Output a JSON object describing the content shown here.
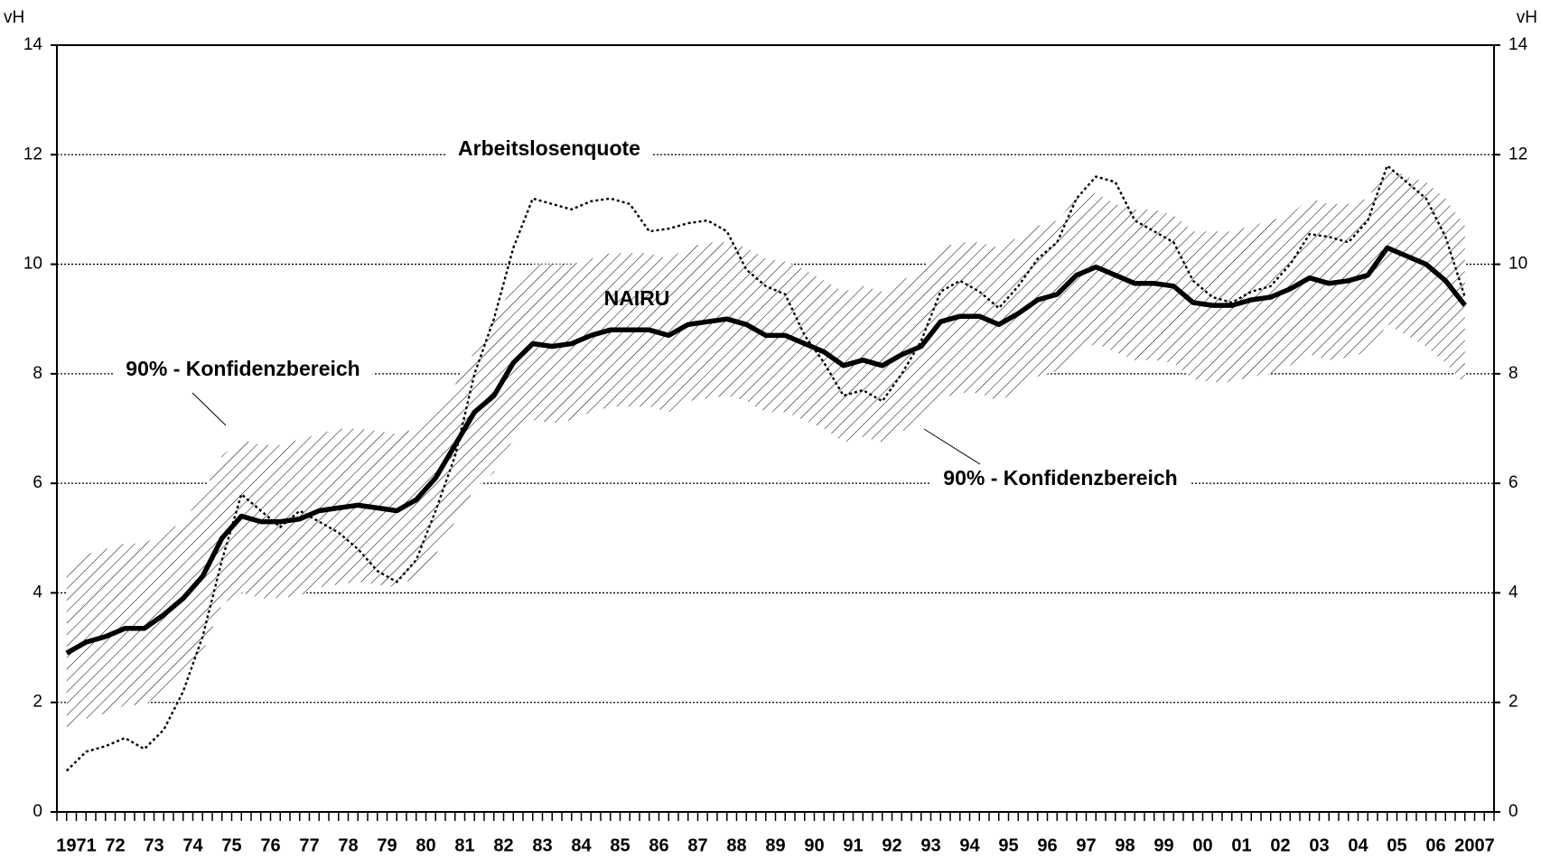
{
  "chart_data": {
    "type": "line",
    "y_label": "vH",
    "y2_label": "vH",
    "ylim": [
      0,
      14
    ],
    "yticks": [
      0,
      2,
      4,
      6,
      8,
      10,
      12,
      14
    ],
    "y2lim": [
      0,
      14
    ],
    "y2ticks": [
      0,
      2,
      4,
      6,
      8,
      10,
      12,
      14
    ],
    "grid": true,
    "categories": [
      "1971",
      null,
      "72",
      null,
      "73",
      null,
      "74",
      null,
      "75",
      null,
      "76",
      null,
      "77",
      null,
      "78",
      null,
      "79",
      null,
      "80",
      null,
      "81",
      null,
      "82",
      null,
      "83",
      null,
      "84",
      null,
      "85",
      null,
      "86",
      null,
      "87",
      null,
      "88",
      null,
      "89",
      null,
      "90",
      null,
      "91",
      null,
      "92",
      null,
      "93",
      null,
      "94",
      null,
      "95",
      null,
      "96",
      null,
      "97",
      null,
      "98",
      null,
      "99",
      null,
      "00",
      null,
      "01",
      null,
      "02",
      null,
      "03",
      null,
      "04",
      null,
      "05",
      null,
      "06",
      null,
      "2007",
      null
    ],
    "band": {
      "label": "90% - Konfidenzbereich",
      "upper": [
        4.4,
        4.7,
        4.8,
        4.9,
        4.9,
        5.1,
        5.3,
        5.8,
        6.5,
        6.8,
        6.7,
        6.7,
        6.8,
        6.9,
        7.0,
        7.0,
        6.95,
        6.9,
        7.0,
        7.3,
        7.8,
        8.4,
        9.0,
        9.6,
        10.0,
        10.0,
        10.0,
        10.1,
        10.2,
        10.2,
        10.2,
        10.1,
        10.3,
        10.4,
        10.4,
        10.3,
        10.1,
        10.05,
        9.9,
        9.7,
        9.5,
        9.6,
        9.5,
        9.7,
        9.9,
        10.3,
        10.4,
        10.4,
        10.3,
        10.5,
        10.7,
        10.8,
        11.2,
        11.3,
        11.1,
        11.0,
        11.0,
        10.9,
        10.6,
        10.6,
        10.6,
        10.7,
        10.8,
        10.9,
        11.2,
        11.1,
        11.1,
        11.2,
        11.8,
        11.6,
        11.5,
        11.2,
        10.7,
        null
      ],
      "lower": [
        1.5,
        1.7,
        1.8,
        1.95,
        1.95,
        2.2,
        2.5,
        2.9,
        3.8,
        4.0,
        3.9,
        3.9,
        3.95,
        4.1,
        4.15,
        4.2,
        4.15,
        4.1,
        4.3,
        4.7,
        5.3,
        5.9,
        6.2,
        6.8,
        7.15,
        7.1,
        7.15,
        7.3,
        7.4,
        7.4,
        7.4,
        7.3,
        7.5,
        7.55,
        7.6,
        7.5,
        7.3,
        7.3,
        7.15,
        7.0,
        6.75,
        6.85,
        6.75,
        6.95,
        7.1,
        7.55,
        7.65,
        7.65,
        7.5,
        7.7,
        7.95,
        8.05,
        8.4,
        8.55,
        8.4,
        8.25,
        8.25,
        8.2,
        7.9,
        7.85,
        7.85,
        7.95,
        8.0,
        8.15,
        8.35,
        8.25,
        8.3,
        8.4,
        8.9,
        8.7,
        8.5,
        8.2,
        7.8,
        null
      ]
    },
    "series": [
      {
        "name": "Arbeitslosenquote",
        "color": "#000000",
        "style": "dotted",
        "values": [
          0.75,
          1.1,
          1.2,
          1.35,
          1.15,
          1.5,
          2.2,
          3.2,
          4.6,
          5.8,
          5.5,
          5.2,
          5.5,
          5.3,
          5.1,
          4.8,
          4.4,
          4.2,
          4.6,
          5.5,
          6.5,
          8.0,
          9.0,
          10.3,
          11.2,
          11.1,
          11.0,
          11.15,
          11.2,
          11.1,
          10.6,
          10.65,
          10.75,
          10.8,
          10.6,
          9.9,
          9.6,
          9.45,
          8.7,
          8.2,
          7.6,
          7.7,
          7.5,
          8.0,
          8.6,
          9.5,
          9.7,
          9.5,
          9.2,
          9.6,
          10.1,
          10.4,
          11.2,
          11.6,
          11.5,
          10.8,
          10.6,
          10.4,
          9.7,
          9.4,
          9.3,
          9.5,
          9.6,
          10.0,
          10.55,
          10.5,
          10.4,
          10.8,
          11.8,
          11.5,
          11.2,
          10.5,
          9.4,
          null
        ]
      },
      {
        "name": "NAIRU",
        "color": "#000000",
        "style": "solid",
        "values": [
          2.9,
          3.1,
          3.2,
          3.35,
          3.35,
          3.6,
          3.9,
          4.3,
          5.0,
          5.4,
          5.3,
          5.3,
          5.35,
          5.5,
          5.55,
          5.6,
          5.55,
          5.5,
          5.7,
          6.1,
          6.7,
          7.3,
          7.6,
          8.2,
          8.55,
          8.5,
          8.55,
          8.7,
          8.8,
          8.8,
          8.8,
          8.7,
          8.9,
          8.95,
          9.0,
          8.9,
          8.7,
          8.7,
          8.55,
          8.4,
          8.15,
          8.25,
          8.15,
          8.35,
          8.5,
          8.95,
          9.05,
          9.05,
          8.9,
          9.1,
          9.35,
          9.45,
          9.8,
          9.95,
          9.8,
          9.65,
          9.65,
          9.6,
          9.3,
          9.25,
          9.25,
          9.35,
          9.4,
          9.55,
          9.75,
          9.65,
          9.7,
          9.8,
          10.3,
          10.15,
          10.0,
          9.7,
          9.25,
          null
        ]
      }
    ]
  }
}
